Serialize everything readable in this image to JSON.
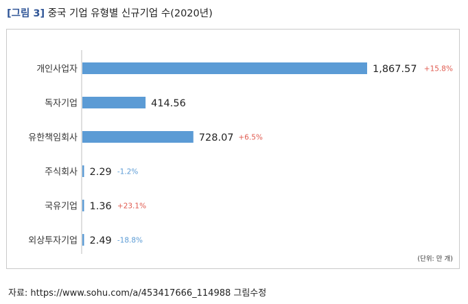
{
  "header": {
    "figure_label": "[그림 3]",
    "title": "중국 기업 유형별 신규기업 수(2020년)"
  },
  "chart_data": {
    "type": "bar",
    "orientation": "horizontal",
    "categories": [
      "개인사업자",
      "독자기업",
      "유한책임회사",
      "주식회사",
      "국유기업",
      "외상투자기업"
    ],
    "values": [
      1867.57,
      414.56,
      728.07,
      2.29,
      1.36,
      2.49
    ],
    "value_labels": [
      "1,867.57",
      "414.56",
      "728.07",
      "2.29",
      "1.36",
      "2.49"
    ],
    "growth_labels": [
      "+15.8%",
      "",
      "+6.5%",
      "-1.2%",
      "+23.1%",
      "-18.8%"
    ],
    "growth_values": [
      15.8,
      null,
      6.5,
      -1.2,
      23.1,
      -18.8
    ],
    "xlim": [
      0,
      1867.57
    ],
    "unit_note": "(단위: 만 개)",
    "colors": {
      "bar": "#5b9bd5",
      "positive": "#e05a4f",
      "negative": "#5b9bd5",
      "axis": "#bfbfbf"
    }
  },
  "footer": {
    "source": "자료: https://www.sohu.com/a/453417666_114988 그림수정"
  }
}
